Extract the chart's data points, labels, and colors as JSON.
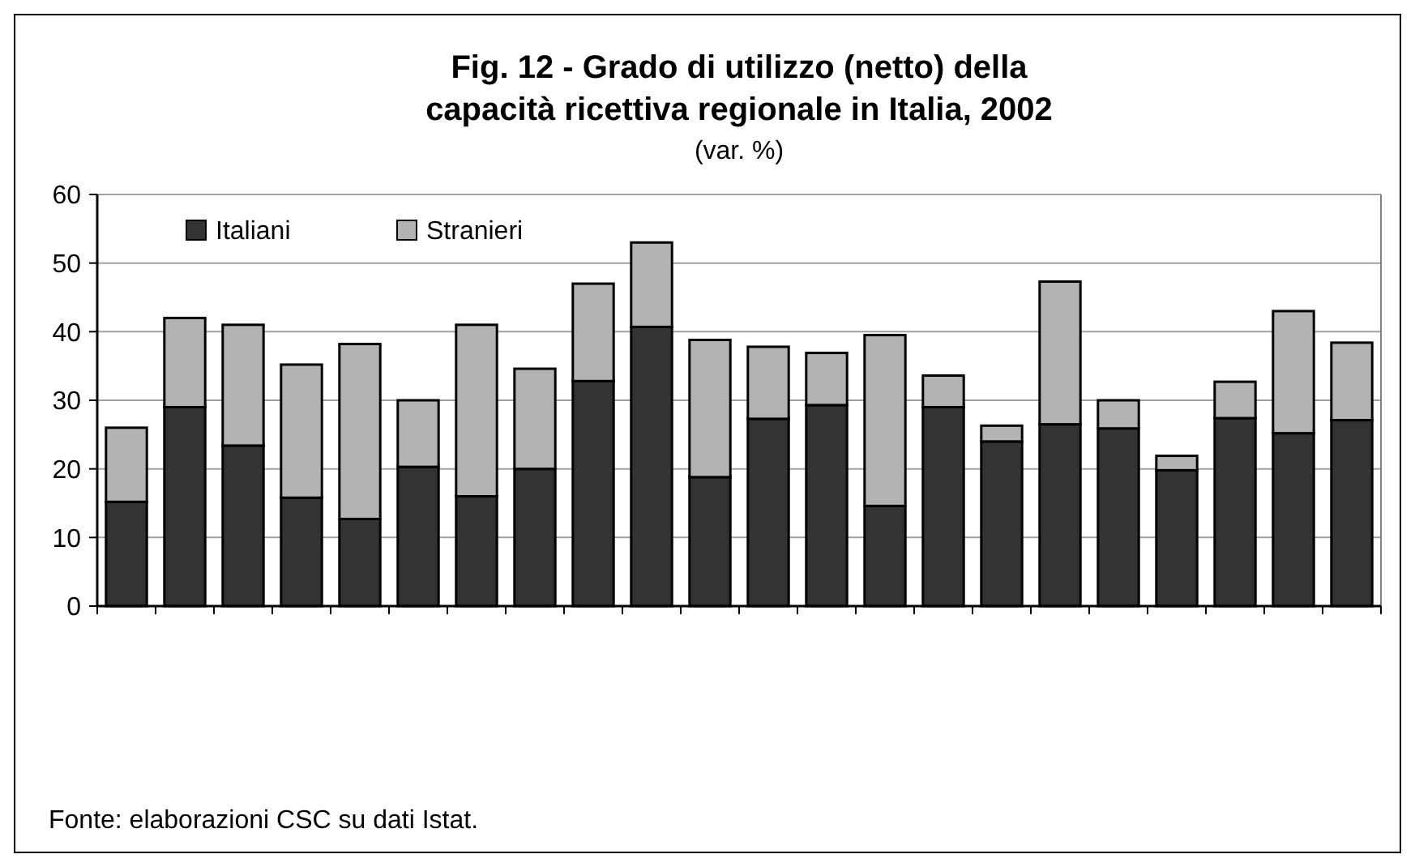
{
  "chart_data": {
    "type": "bar",
    "title": "Fig. 12 - Grado di utilizzo (netto) della capacità ricettiva regionale in Italia, 2002",
    "subtitle": "(var. %)",
    "categories": [
      null,
      null,
      null,
      null,
      null,
      null,
      null,
      null,
      null,
      null,
      null,
      null,
      null,
      null,
      null,
      null,
      null,
      null,
      null,
      null,
      null,
      null
    ],
    "series": [
      {
        "name": "Italiani",
        "color": "#333333",
        "values": [
          15.2,
          29,
          23.4,
          15.8,
          12.7,
          20.3,
          16,
          20,
          32.8,
          40.7,
          18.8,
          27.3,
          29.3,
          14.6,
          29,
          24,
          26.5,
          25.9,
          19.8,
          27.4,
          25.2,
          27.1
        ]
      },
      {
        "name": "Stranieri",
        "color": "#b3b3b3",
        "values": [
          10.8,
          13,
          17.6,
          19.4,
          25.5,
          9.7,
          25,
          14.6,
          14.2,
          12.3,
          20,
          10.5,
          7.6,
          24.9,
          4.6,
          2.3,
          20.8,
          4.1,
          2.1,
          5.3,
          17.8,
          11.3
        ]
      }
    ],
    "stacked": true,
    "ylim": [
      0,
      60
    ],
    "yticks": [
      0,
      10,
      20,
      30,
      40,
      50,
      60
    ],
    "grid": "y",
    "legend": "top left",
    "annotations": [
      "Fonte: elaborazioni CSC su dati Istat."
    ]
  }
}
